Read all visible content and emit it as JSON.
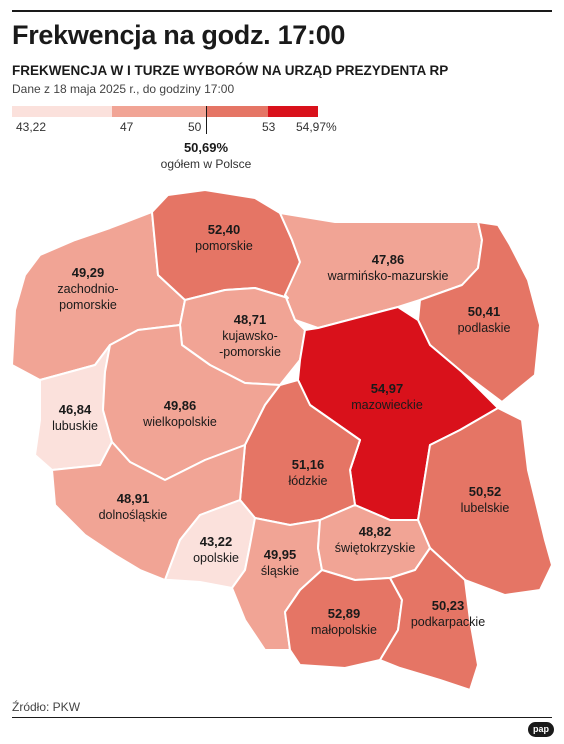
{
  "title": "Frekwencja na godz. 17:00",
  "subtitle": "FREKWENCJA W I TURZE WYBORÓW NA URZĄD PREZYDENTA RP",
  "dateline": "Dane z 18 maja 2025 r., do godziny 17:00",
  "legend": {
    "ticks": [
      "43,22",
      "47",
      "50",
      "53",
      "54,97%"
    ],
    "colors": [
      "#fbe1dc",
      "#f1a495",
      "#e57565",
      "#d9111b"
    ]
  },
  "average": {
    "value": "50,69%",
    "label": "ogółem w Polsce"
  },
  "regions": [
    {
      "id": "zachodniopomorskie",
      "value": "49,29",
      "name": "zachodnio-\npomorskie",
      "turnout": 49.29,
      "color": "#f1a495"
    },
    {
      "id": "pomorskie",
      "value": "52,40",
      "name": "pomorskie",
      "turnout": 52.4,
      "color": "#e57565"
    },
    {
      "id": "warminsko-mazurskie",
      "value": "47,86",
      "name": "warmińsko-mazurskie",
      "turnout": 47.86,
      "color": "#f1a495"
    },
    {
      "id": "podlaskie",
      "value": "50,41",
      "name": "podlaskie",
      "turnout": 50.41,
      "color": "#e57565"
    },
    {
      "id": "kujawsko-pomorskie",
      "value": "48,71",
      "name": "kujawsko-\n-pomorskie",
      "turnout": 48.71,
      "color": "#f1a495"
    },
    {
      "id": "lubuskie",
      "value": "46,84",
      "name": "lubuskie",
      "turnout": 46.84,
      "color": "#fbe1dc"
    },
    {
      "id": "wielkopolskie",
      "value": "49,86",
      "name": "wielkopolskie",
      "turnout": 49.86,
      "color": "#f1a495"
    },
    {
      "id": "mazowieckie",
      "value": "54,97",
      "name": "mazowieckie",
      "turnout": 54.97,
      "color": "#d9111b"
    },
    {
      "id": "lodzkie",
      "value": "51,16",
      "name": "łódzkie",
      "turnout": 51.16,
      "color": "#e57565"
    },
    {
      "id": "lubelskie",
      "value": "50,52",
      "name": "lubelskie",
      "turnout": 50.52,
      "color": "#e57565"
    },
    {
      "id": "dolnoslaskie",
      "value": "48,91",
      "name": "dolnośląskie",
      "turnout": 48.91,
      "color": "#f1a495"
    },
    {
      "id": "opolskie",
      "value": "43,22",
      "name": "opolskie",
      "turnout": 43.22,
      "color": "#fbe1dc"
    },
    {
      "id": "slaskie",
      "value": "49,95",
      "name": "śląskie",
      "turnout": 49.95,
      "color": "#f1a495"
    },
    {
      "id": "swietokrzyskie",
      "value": "48,82",
      "name": "świętokrzyskie",
      "turnout": 48.82,
      "color": "#f1a495"
    },
    {
      "id": "malopolskie",
      "value": "52,89",
      "name": "małopolskie",
      "turnout": 52.89,
      "color": "#e57565"
    },
    {
      "id": "podkarpackie",
      "value": "50,23",
      "name": "podkarpackie",
      "turnout": 50.23,
      "color": "#e57565"
    }
  ],
  "source": "Źródło: PKW",
  "logo": "pap"
}
